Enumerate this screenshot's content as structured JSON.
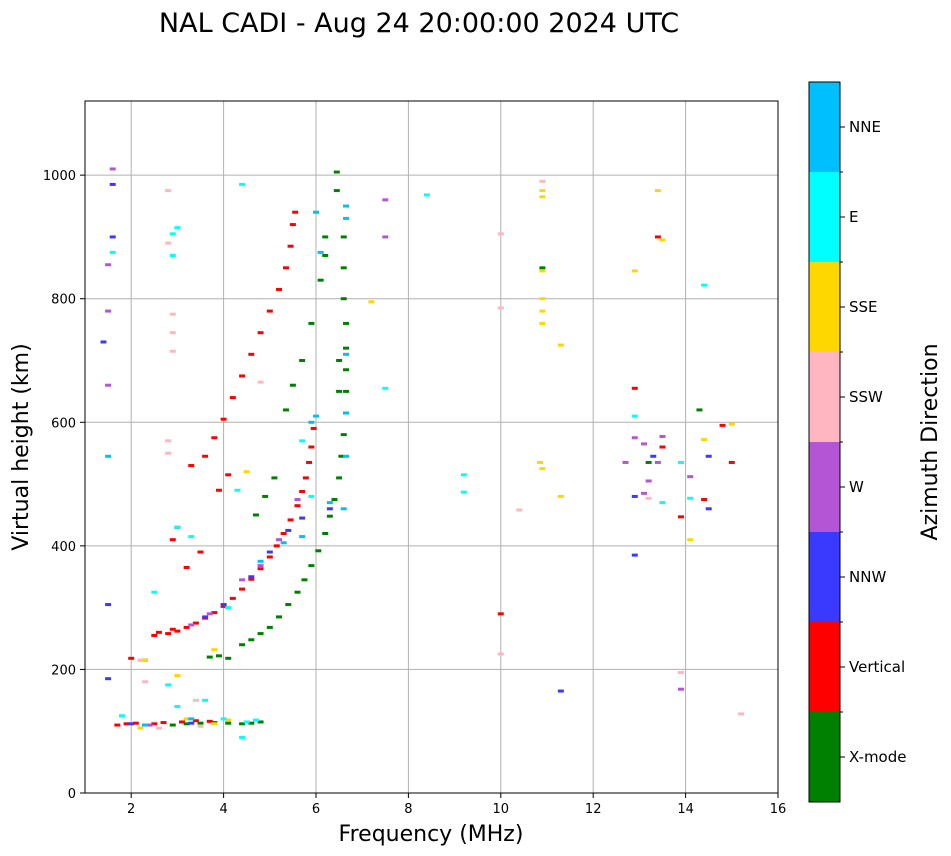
{
  "chart_data": {
    "type": "scatter",
    "title": "NAL CADI - Aug 24 20:00:00 2024 UTC",
    "xlabel": "Frequency (MHz)",
    "ylabel": "Virtual height (km)",
    "xlim": [
      1,
      16
    ],
    "ylim": [
      0,
      1120
    ],
    "xticks": [
      2,
      4,
      6,
      8,
      10,
      12,
      14,
      16
    ],
    "yticks": [
      0,
      200,
      400,
      600,
      800,
      1000
    ],
    "grid": true,
    "colorbar": {
      "title": "Azimuth Direction",
      "categories": [
        {
          "label": "X-mode",
          "color": "#008000"
        },
        {
          "label": "Vertical",
          "color": "#ff0000"
        },
        {
          "label": "NNW",
          "color": "#3a3aff"
        },
        {
          "label": "W",
          "color": "#b455d6"
        },
        {
          "label": "SSW",
          "color": "#ffb6c1"
        },
        {
          "label": "SSE",
          "color": "#ffd700"
        },
        {
          "label": "E",
          "color": "#00ffff"
        },
        {
          "label": "NNE",
          "color": "#00bfff"
        }
      ]
    },
    "series": [
      {
        "name": "Vertical",
        "points": [
          [
            2.5,
            255
          ],
          [
            2.8,
            258
          ],
          [
            3.0,
            262
          ],
          [
            3.2,
            268
          ],
          [
            3.4,
            275
          ],
          [
            3.6,
            283
          ],
          [
            3.8,
            292
          ],
          [
            4.0,
            302
          ],
          [
            4.2,
            315
          ],
          [
            4.4,
            330
          ],
          [
            4.6,
            346
          ],
          [
            4.8,
            363
          ],
          [
            5.0,
            382
          ],
          [
            5.15,
            400
          ],
          [
            5.3,
            420
          ],
          [
            5.45,
            442
          ],
          [
            5.6,
            465
          ],
          [
            5.7,
            488
          ],
          [
            5.78,
            510
          ],
          [
            5.85,
            535
          ],
          [
            5.9,
            560
          ],
          [
            5.95,
            590
          ],
          [
            3.6,
            545
          ],
          [
            3.8,
            575
          ],
          [
            4.0,
            605
          ],
          [
            4.2,
            640
          ],
          [
            4.4,
            675
          ],
          [
            4.6,
            710
          ],
          [
            4.8,
            745
          ],
          [
            5.0,
            780
          ],
          [
            5.2,
            815
          ],
          [
            5.35,
            850
          ],
          [
            5.45,
            885
          ],
          [
            5.5,
            920
          ],
          [
            5.55,
            940
          ],
          [
            1.7,
            110
          ],
          [
            1.9,
            112
          ],
          [
            2.1,
            113
          ],
          [
            2.3,
            110
          ],
          [
            2.5,
            112
          ],
          [
            2.7,
            114
          ],
          [
            3.1,
            115
          ],
          [
            3.4,
            117
          ],
          [
            3.7,
            116
          ],
          [
            2.0,
            218
          ],
          [
            2.3,
            215
          ],
          [
            2.6,
            260
          ],
          [
            2.9,
            265
          ],
          [
            3.2,
            365
          ],
          [
            3.5,
            390
          ],
          [
            3.9,
            490
          ],
          [
            4.1,
            515
          ],
          [
            12.9,
            655
          ],
          [
            13.4,
            900
          ],
          [
            15.0,
            535
          ],
          [
            14.8,
            595
          ],
          [
            13.5,
            560
          ],
          [
            14.4,
            475
          ],
          [
            13.9,
            447
          ],
          [
            10.0,
            290
          ],
          [
            3.3,
            530
          ],
          [
            3.0,
            430
          ],
          [
            2.9,
            410
          ]
        ]
      },
      {
        "name": "X-mode",
        "points": [
          [
            3.7,
            220
          ],
          [
            3.9,
            222
          ],
          [
            4.1,
            218
          ],
          [
            4.4,
            240
          ],
          [
            4.6,
            248
          ],
          [
            4.8,
            258
          ],
          [
            5.0,
            268
          ],
          [
            5.2,
            285
          ],
          [
            5.4,
            305
          ],
          [
            5.6,
            325
          ],
          [
            5.75,
            345
          ],
          [
            5.9,
            368
          ],
          [
            6.05,
            392
          ],
          [
            6.2,
            420
          ],
          [
            6.3,
            448
          ],
          [
            6.4,
            475
          ],
          [
            6.5,
            510
          ],
          [
            6.55,
            545
          ],
          [
            6.6,
            580
          ],
          [
            6.65,
            615
          ],
          [
            6.65,
            650
          ],
          [
            6.65,
            685
          ],
          [
            6.65,
            720
          ],
          [
            6.65,
            760
          ],
          [
            6.6,
            800
          ],
          [
            6.6,
            850
          ],
          [
            6.6,
            900
          ],
          [
            6.45,
            975
          ],
          [
            6.45,
            1005
          ],
          [
            6.5,
            700
          ],
          [
            6.5,
            650
          ],
          [
            4.7,
            450
          ],
          [
            4.9,
            480
          ],
          [
            5.1,
            510
          ],
          [
            5.35,
            620
          ],
          [
            5.5,
            660
          ],
          [
            5.7,
            700
          ],
          [
            5.9,
            760
          ],
          [
            6.1,
            830
          ],
          [
            6.2,
            870
          ],
          [
            6.2,
            900
          ],
          [
            2.9,
            110
          ],
          [
            3.2,
            112
          ],
          [
            3.5,
            113
          ],
          [
            3.8,
            114
          ],
          [
            4.1,
            113
          ],
          [
            4.4,
            112
          ],
          [
            4.6,
            113
          ],
          [
            4.8,
            115
          ],
          [
            10.9,
            850
          ],
          [
            13.2,
            535
          ],
          [
            14.3,
            620
          ]
        ]
      },
      {
        "name": "NNW",
        "points": [
          [
            3.6,
            285
          ],
          [
            4.0,
            305
          ],
          [
            4.6,
            350
          ],
          [
            5.0,
            390
          ],
          [
            5.4,
            425
          ],
          [
            5.7,
            445
          ],
          [
            6.3,
            460
          ],
          [
            12.9,
            385
          ],
          [
            13.3,
            545
          ],
          [
            14.5,
            545
          ],
          [
            14.5,
            460
          ],
          [
            11.3,
            165
          ],
          [
            1.5,
            185
          ],
          [
            1.5,
            305
          ],
          [
            1.6,
            985
          ],
          [
            1.6,
            900
          ],
          [
            1.4,
            730
          ],
          [
            2.0,
            112
          ],
          [
            3.3,
            113
          ],
          [
            12.9,
            480
          ]
        ]
      },
      {
        "name": "W",
        "points": [
          [
            3.3,
            272
          ],
          [
            3.7,
            290
          ],
          [
            4.4,
            345
          ],
          [
            4.8,
            368
          ],
          [
            5.2,
            410
          ],
          [
            5.6,
            475
          ],
          [
            13.1,
            565
          ],
          [
            13.5,
            577
          ],
          [
            12.9,
            575
          ],
          [
            13.1,
            485
          ],
          [
            13.4,
            535
          ],
          [
            14.1,
            512
          ],
          [
            13.9,
            168
          ],
          [
            7.5,
            960
          ],
          [
            7.5,
            900
          ],
          [
            1.5,
            855
          ],
          [
            1.5,
            660
          ],
          [
            1.5,
            780
          ],
          [
            1.6,
            1010
          ],
          [
            12.7,
            535
          ],
          [
            13.2,
            505
          ],
          [
            2.4,
            110
          ]
        ]
      },
      {
        "name": "SSW",
        "points": [
          [
            2.2,
            215
          ],
          [
            2.9,
            775
          ],
          [
            2.9,
            745
          ],
          [
            2.9,
            715
          ],
          [
            2.8,
            975
          ],
          [
            2.8,
            890
          ],
          [
            10.0,
            905
          ],
          [
            10.0,
            785
          ],
          [
            10.0,
            225
          ],
          [
            10.9,
            990
          ],
          [
            10.4,
            458
          ],
          [
            13.9,
            195
          ],
          [
            15.2,
            128
          ],
          [
            3.4,
            150
          ],
          [
            2.6,
            105
          ],
          [
            3.5,
            108
          ],
          [
            2.8,
            570
          ],
          [
            2.8,
            550
          ],
          [
            4.8,
            665
          ],
          [
            2.3,
            180
          ],
          [
            13.2,
            477
          ]
        ]
      },
      {
        "name": "SSE",
        "points": [
          [
            2.3,
            215
          ],
          [
            3.0,
            190
          ],
          [
            3.8,
            232
          ],
          [
            7.2,
            795
          ],
          [
            10.9,
            760
          ],
          [
            10.9,
            780
          ],
          [
            10.9,
            800
          ],
          [
            10.9,
            965
          ],
          [
            10.9,
            975
          ],
          [
            10.9,
            845
          ],
          [
            10.85,
            535
          ],
          [
            10.9,
            525
          ],
          [
            11.3,
            725
          ],
          [
            11.3,
            480
          ],
          [
            12.9,
            845
          ],
          [
            13.4,
            975
          ],
          [
            14.1,
            410
          ],
          [
            14.4,
            572
          ],
          [
            15.0,
            597
          ],
          [
            13.5,
            895
          ],
          [
            4.5,
            520
          ],
          [
            3.2,
            120
          ],
          [
            3.8,
            112
          ],
          [
            4.1,
            118
          ],
          [
            2.2,
            105
          ]
        ]
      },
      {
        "name": "E",
        "points": [
          [
            2.9,
            905
          ],
          [
            3.0,
            915
          ],
          [
            2.9,
            870
          ],
          [
            1.6,
            875
          ],
          [
            4.4,
            985
          ],
          [
            8.4,
            968
          ],
          [
            9.2,
            515
          ],
          [
            9.2,
            487
          ],
          [
            7.5,
            655
          ],
          [
            12.9,
            610
          ],
          [
            13.9,
            535
          ],
          [
            14.1,
            477
          ],
          [
            14.4,
            822
          ],
          [
            13.5,
            470
          ],
          [
            2.5,
            325
          ],
          [
            3.0,
            430
          ],
          [
            3.3,
            415
          ],
          [
            2.8,
            175
          ],
          [
            4.4,
            90
          ],
          [
            1.8,
            125
          ],
          [
            3.0,
            140
          ],
          [
            3.6,
            150
          ],
          [
            4.0,
            120
          ],
          [
            4.5,
            115
          ],
          [
            5.7,
            570
          ],
          [
            5.9,
            480
          ],
          [
            4.1,
            300
          ],
          [
            4.3,
            490
          ],
          [
            4.7,
            118
          ]
        ]
      },
      {
        "name": "NNE",
        "points": [
          [
            6.65,
            950
          ],
          [
            6.65,
            930
          ],
          [
            6.65,
            710
          ],
          [
            6.65,
            615
          ],
          [
            6.65,
            545
          ],
          [
            6.6,
            460
          ],
          [
            6.3,
            470
          ],
          [
            5.7,
            415
          ],
          [
            5.3,
            405
          ],
          [
            6.0,
            610
          ],
          [
            5.9,
            600
          ],
          [
            6.0,
            940
          ],
          [
            1.5,
            545
          ],
          [
            2.3,
            110
          ],
          [
            3.3,
            120
          ],
          [
            6.1,
            875
          ],
          [
            4.8,
            375
          ]
        ]
      }
    ]
  }
}
